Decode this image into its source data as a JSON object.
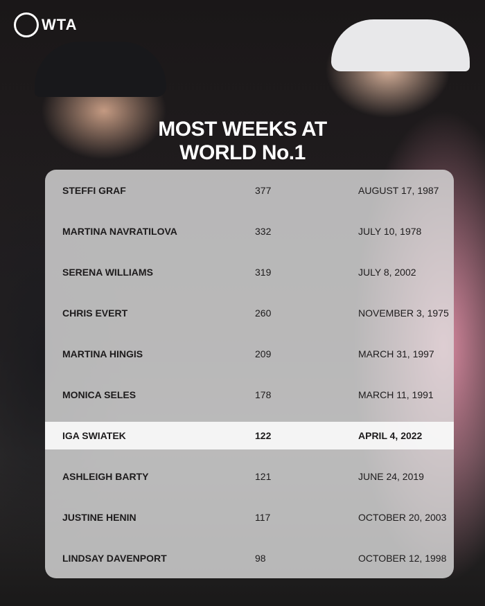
{
  "brand": {
    "logo_text": "WTA"
  },
  "title_lines": [
    "MOST WEEKS AT",
    "WORLD No.1"
  ],
  "rows": [
    {
      "name": "STEFFI GRAF",
      "weeks": "377",
      "date": "AUGUST 17, 1987"
    },
    {
      "name": "MARTINA NAVRATILOVA",
      "weeks": "332",
      "date": "JULY 10, 1978"
    },
    {
      "name": "SERENA WILLIAMS",
      "weeks": "319",
      "date": "JULY 8, 2002"
    },
    {
      "name": "CHRIS EVERT",
      "weeks": "260",
      "date": "NOVEMBER 3, 1975"
    },
    {
      "name": "MARTINA HINGIS",
      "weeks": "209",
      "date": "MARCH 31, 1997"
    },
    {
      "name": "MONICA SELES",
      "weeks": "178",
      "date": "MARCH 11, 1991"
    },
    {
      "name": "IGA SWIATEK",
      "weeks": "122",
      "date": "APRIL 4, 2022",
      "highlighted": true
    },
    {
      "name": "ASHLEIGH BARTY",
      "weeks": "121",
      "date": "JUNE 24, 2019"
    },
    {
      "name": "JUSTINE HENIN",
      "weeks": "117",
      "date": "OCTOBER 20, 2003"
    },
    {
      "name": "LINDSAY DAVENPORT",
      "weeks": "98",
      "date": "OCTOBER 12, 1998"
    }
  ],
  "colors": {
    "text": "#1d1b1c",
    "title": "#ffffff",
    "highlight_row": "#f8f8f8"
  }
}
